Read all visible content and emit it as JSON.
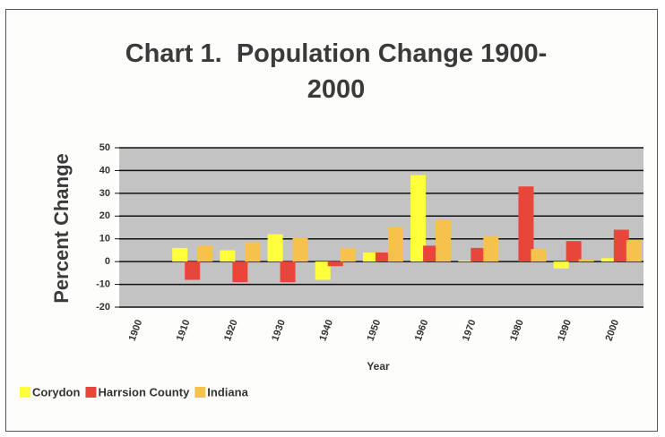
{
  "chart_data": {
    "type": "bar",
    "title": "Chart 1.  Population Change 1900-2000",
    "x_label": "Year",
    "y_label": "Percent Change",
    "categories": [
      "1900",
      "1910",
      "1920",
      "1930",
      "1940",
      "1950",
      "1960",
      "1970",
      "1980",
      "1990",
      "2000"
    ],
    "series": [
      {
        "name": "Corydon",
        "color": "#ffff3c",
        "values": [
          null,
          6,
          5,
          12,
          -8,
          4,
          38,
          0.5,
          0,
          -3,
          1.5
        ]
      },
      {
        "name": "Harrsion County",
        "color": "#e8463a",
        "values": [
          null,
          -8,
          -9,
          -9,
          -2,
          4,
          7,
          6,
          33,
          9,
          14
        ]
      },
      {
        "name": "Indiana",
        "color": "#f6c24c",
        "values": [
          null,
          7,
          8.5,
          10.5,
          6,
          15,
          18.5,
          11,
          5.5,
          1,
          9.5
        ]
      }
    ],
    "ylim": [
      -20,
      50
    ],
    "yticks": [
      -20,
      -10,
      0,
      10,
      20,
      30,
      40,
      50
    ],
    "grid": true
  }
}
